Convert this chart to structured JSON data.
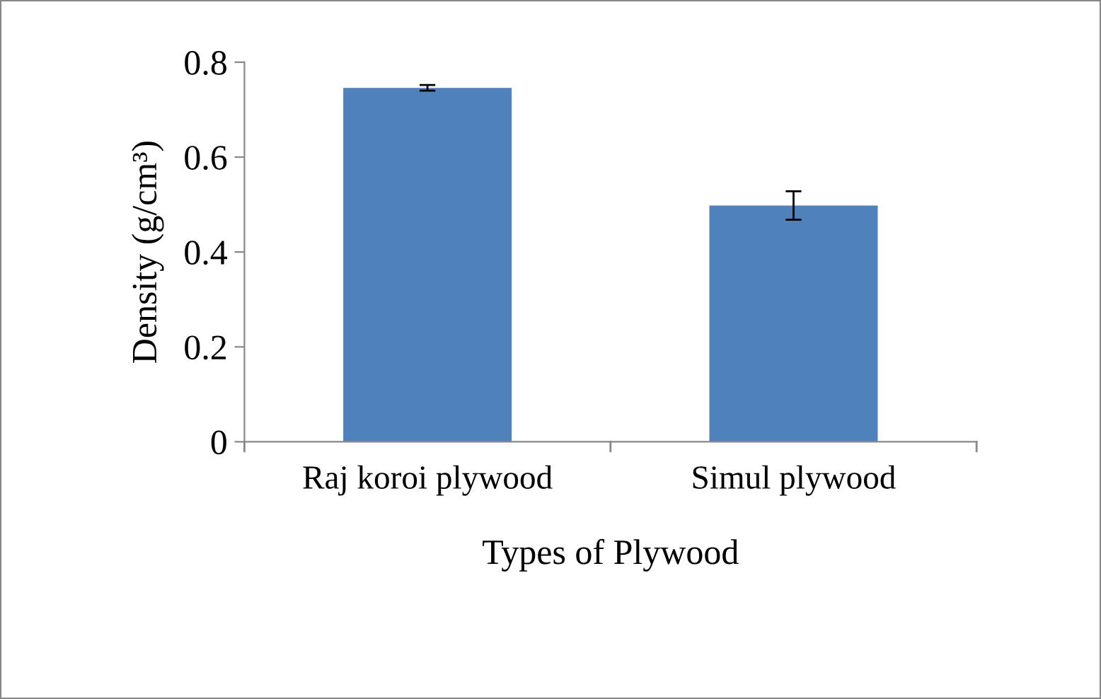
{
  "chart_data": {
    "type": "bar",
    "categories": [
      "Raj koroi plywood",
      "Simul plywood"
    ],
    "values": [
      0.746,
      0.498
    ],
    "errors": [
      0.006,
      0.03
    ],
    "color": "#4f81bd",
    "xlabel": "Types of Plywood",
    "ylabel": "Density (g/cm³)",
    "ylim": [
      0,
      0.8
    ],
    "yticks": [
      0,
      0.2,
      0.4,
      0.6,
      0.8
    ],
    "grid": false,
    "legend": false
  }
}
